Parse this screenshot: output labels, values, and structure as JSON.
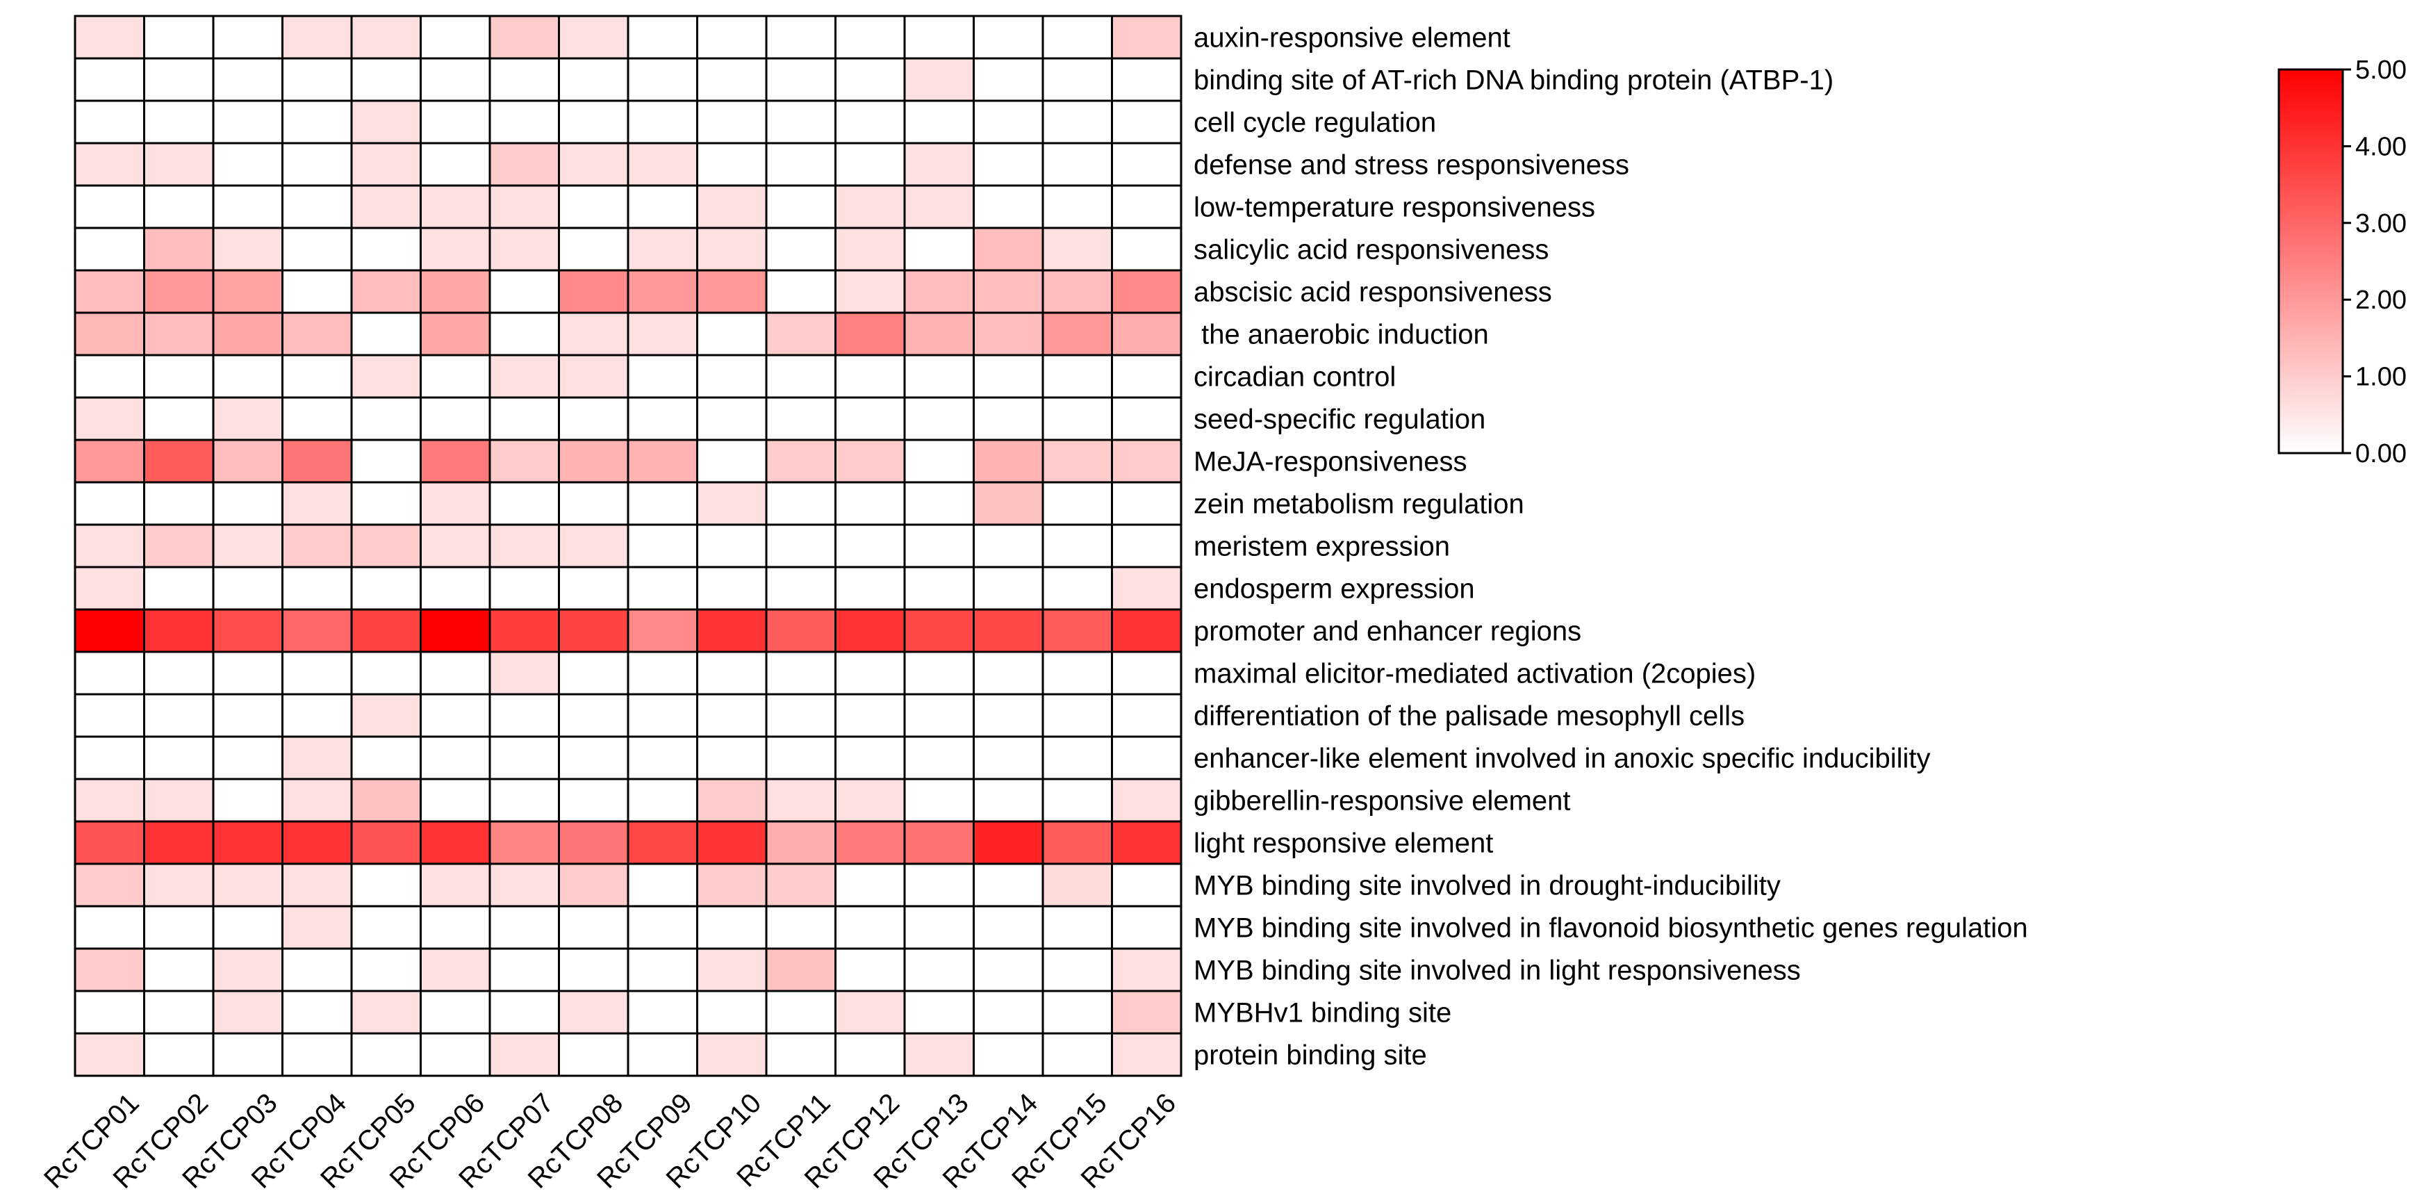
{
  "chart_data": {
    "type": "heatmap",
    "columns": [
      "RcTCP01",
      "RcTCP02",
      "RcTCP03",
      "RcTCP04",
      "RcTCP05",
      "RcTCP06",
      "RcTCP07",
      "RcTCP08",
      "RcTCP09",
      "RcTCP10",
      "RcTCP11",
      "RcTCP12",
      "RcTCP13",
      "RcTCP14",
      "RcTCP15",
      "RcTCP16"
    ],
    "rows": [
      "auxin-responsive element",
      "binding site of AT-rich DNA binding protein (ATBP-1)",
      "cell cycle regulation",
      "defense and stress responsiveness",
      "low-temperature responsiveness",
      "salicylic acid responsiveness",
      "abscisic acid responsiveness",
      " the anaerobic induction",
      "circadian control",
      "seed-specific regulation",
      "MeJA-responsiveness",
      "zein metabolism regulation",
      "meristem expression",
      "endosperm expression",
      "promoter and enhancer regions",
      "maximal elicitor-mediated activation (2copies)",
      "differentiation of the palisade mesophyll cells",
      "enhancer-like element involved in anoxic specific inducibility",
      "gibberellin-responsive element",
      "light responsive element",
      "MYB binding site involved in drought-inducibility",
      "MYB binding site involved in flavonoid biosynthetic genes regulation",
      "MYB binding site involved in light responsiveness",
      "MYBHv1 binding site",
      "protein binding site"
    ],
    "values": [
      [
        0.6,
        0,
        0,
        0.6,
        0.6,
        0,
        1.0,
        0.6,
        0,
        0,
        0,
        0,
        0,
        0,
        0,
        1.0
      ],
      [
        0,
        0,
        0,
        0,
        0,
        0,
        0,
        0,
        0,
        0,
        0,
        0,
        0.6,
        0,
        0,
        0
      ],
      [
        0,
        0,
        0,
        0,
        0.6,
        0,
        0,
        0,
        0,
        0,
        0,
        0,
        0,
        0,
        0,
        0
      ],
      [
        0.6,
        0.6,
        0,
        0,
        0.6,
        0,
        1.0,
        0.6,
        0.6,
        0,
        0,
        0,
        0.6,
        0,
        0,
        0
      ],
      [
        0,
        0,
        0,
        0,
        0.6,
        0.6,
        0.6,
        0,
        0,
        0.6,
        0,
        0.6,
        0.6,
        0,
        0,
        0
      ],
      [
        0,
        1.3,
        0.6,
        0,
        0,
        0.6,
        0.6,
        0,
        0.6,
        0.6,
        0,
        0.6,
        0,
        1.3,
        0.6,
        0
      ],
      [
        1.3,
        2.0,
        1.8,
        0,
        1.3,
        1.7,
        0,
        2.3,
        2.0,
        2.0,
        0,
        0.6,
        1.3,
        1.3,
        1.3,
        2.3
      ],
      [
        1.4,
        1.3,
        1.7,
        1.3,
        0,
        1.7,
        0,
        0.6,
        0.6,
        0,
        1.0,
        2.5,
        1.5,
        1.3,
        2.0,
        1.6
      ],
      [
        0,
        0,
        0,
        0,
        0.6,
        0,
        0.6,
        0.6,
        0,
        0,
        0,
        0,
        0,
        0,
        0,
        0
      ],
      [
        0.6,
        0,
        0.6,
        0,
        0,
        0,
        0,
        0,
        0,
        0,
        0,
        0,
        0,
        0,
        0,
        0
      ],
      [
        2.0,
        3.2,
        1.3,
        2.7,
        0,
        2.6,
        1.0,
        1.5,
        1.5,
        0,
        1.0,
        1.0,
        0,
        1.5,
        1.0,
        1.0
      ],
      [
        0,
        0,
        0,
        0.6,
        0,
        0.6,
        0,
        0,
        0,
        0.6,
        0,
        0,
        0,
        1.2,
        0,
        0
      ],
      [
        0.6,
        1.0,
        0.6,
        1.0,
        1.0,
        0.6,
        0.6,
        0.6,
        0,
        0,
        0,
        0,
        0,
        0,
        0,
        0
      ],
      [
        0.6,
        0,
        0,
        0,
        0,
        0,
        0,
        0,
        0,
        0,
        0,
        0,
        0,
        0,
        0,
        0.6
      ],
      [
        5.0,
        4.0,
        3.5,
        3.0,
        3.7,
        5.0,
        3.8,
        3.7,
        2.3,
        4.0,
        3.2,
        4.0,
        3.6,
        3.6,
        3.2,
        4.0
      ],
      [
        0,
        0,
        0,
        0,
        0,
        0,
        0.6,
        0,
        0,
        0,
        0,
        0,
        0,
        0,
        0,
        0
      ],
      [
        0,
        0,
        0,
        0,
        0.6,
        0,
        0,
        0,
        0,
        0,
        0,
        0,
        0,
        0,
        0,
        0
      ],
      [
        0,
        0,
        0,
        0.6,
        0,
        0,
        0,
        0,
        0,
        0,
        0,
        0,
        0,
        0,
        0,
        0
      ],
      [
        0.6,
        0.6,
        0,
        0.6,
        1.2,
        0,
        0,
        0,
        0,
        1.0,
        0.6,
        0.6,
        0,
        0,
        0,
        0.6
      ],
      [
        3.4,
        4.0,
        4.0,
        4.0,
        3.4,
        4.0,
        2.4,
        2.7,
        3.6,
        4.0,
        1.6,
        2.6,
        2.8,
        4.3,
        3.2,
        4.0
      ],
      [
        1.0,
        0.6,
        0.6,
        0.6,
        0,
        0.6,
        0.6,
        1.0,
        0,
        1.0,
        1.0,
        0,
        0,
        0,
        0.7,
        0
      ],
      [
        0,
        0,
        0,
        0.6,
        0,
        0,
        0,
        0,
        0,
        0,
        0,
        0,
        0,
        0,
        0,
        0
      ],
      [
        1.0,
        0,
        0.6,
        0,
        0,
        0.6,
        0,
        0,
        0,
        0.6,
        1.2,
        0,
        0,
        0,
        0,
        0.6
      ],
      [
        0,
        0,
        0.6,
        0,
        0.6,
        0,
        0,
        0.6,
        0,
        0,
        0,
        0.6,
        0,
        0,
        0,
        1.0
      ],
      [
        0.6,
        0,
        0,
        0,
        0,
        0,
        0.6,
        0,
        0,
        0.6,
        0,
        0,
        0.6,
        0,
        0,
        0.6
      ]
    ],
    "colorbar": {
      "range": [
        0,
        5
      ],
      "ticks": [
        "0.00",
        "1.00",
        "2.00",
        "3.00",
        "4.00",
        "5.00"
      ],
      "low_color": "#ffffff",
      "high_color": "#ff0000"
    },
    "grid": true
  }
}
